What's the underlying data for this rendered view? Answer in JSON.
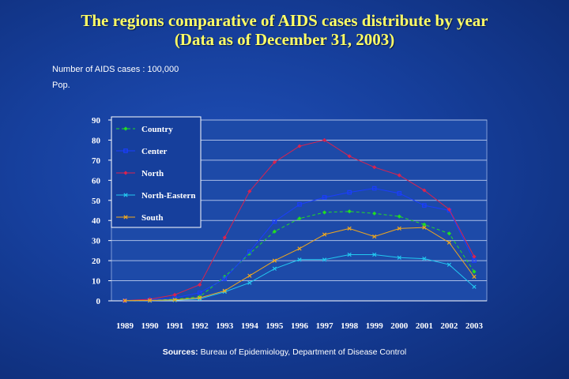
{
  "title_line1": "The regions comparative of AIDS cases distribute by year",
  "title_line2": "(Data as of December 31, 2003)",
  "note_line1": "Number of AIDS cases : 100,000",
  "note_line2": "Pop.",
  "source_label": "Sources:",
  "source_text": "Bureau of Epidemiology, Department of Disease Control",
  "chart_data": {
    "type": "line",
    "x": [
      "1989",
      "1990",
      "1991",
      "1992",
      "1993",
      "1994",
      "1995",
      "1996",
      "1997",
      "1998",
      "1999",
      "2000",
      "2001",
      "2002",
      "2003"
    ],
    "ylim": [
      0,
      90
    ],
    "yticks": [
      0,
      10,
      20,
      30,
      40,
      50,
      60,
      70,
      80,
      90
    ],
    "grid": true,
    "legend_position": "top-left",
    "series": [
      {
        "name": "Country",
        "color": "#22dd22",
        "dash": true,
        "marker": "diamond",
        "values": [
          0.1,
          0.2,
          0.8,
          2.0,
          12.0,
          23.5,
          34.5,
          41.0,
          44.0,
          44.5,
          43.5,
          42.0,
          38.0,
          33.5,
          14.5
        ]
      },
      {
        "name": "Center",
        "color": "#1a3dff",
        "dash": false,
        "marker": "square",
        "values": [
          0.1,
          0.5,
          1.5,
          4.0,
          11.0,
          24.5,
          39.5,
          48.0,
          51.5,
          54.0,
          56.0,
          53.5,
          47.5,
          45.0,
          20.0
        ]
      },
      {
        "name": "North",
        "color": "#d8234f",
        "dash": false,
        "marker": "diamond",
        "values": [
          0.1,
          0.8,
          3.0,
          8.0,
          31.5,
          54.5,
          69.0,
          77.0,
          80.0,
          72.0,
          66.5,
          62.5,
          55.0,
          45.5,
          22.0
        ]
      },
      {
        "name": "North-Eastern",
        "color": "#22c8f0",
        "dash": false,
        "marker": "x",
        "values": [
          0.1,
          0.1,
          0.3,
          1.0,
          4.5,
          9.0,
          16.0,
          20.5,
          20.5,
          23.0,
          23.0,
          21.5,
          21.0,
          18.0,
          7.0
        ]
      },
      {
        "name": "South",
        "color": "#f2a81c",
        "dash": false,
        "marker": "x",
        "values": [
          0.1,
          0.2,
          0.5,
          1.5,
          5.0,
          12.5,
          20.0,
          26.0,
          33.0,
          36.0,
          32.0,
          36.0,
          36.5,
          29.0,
          12.0
        ]
      }
    ]
  }
}
